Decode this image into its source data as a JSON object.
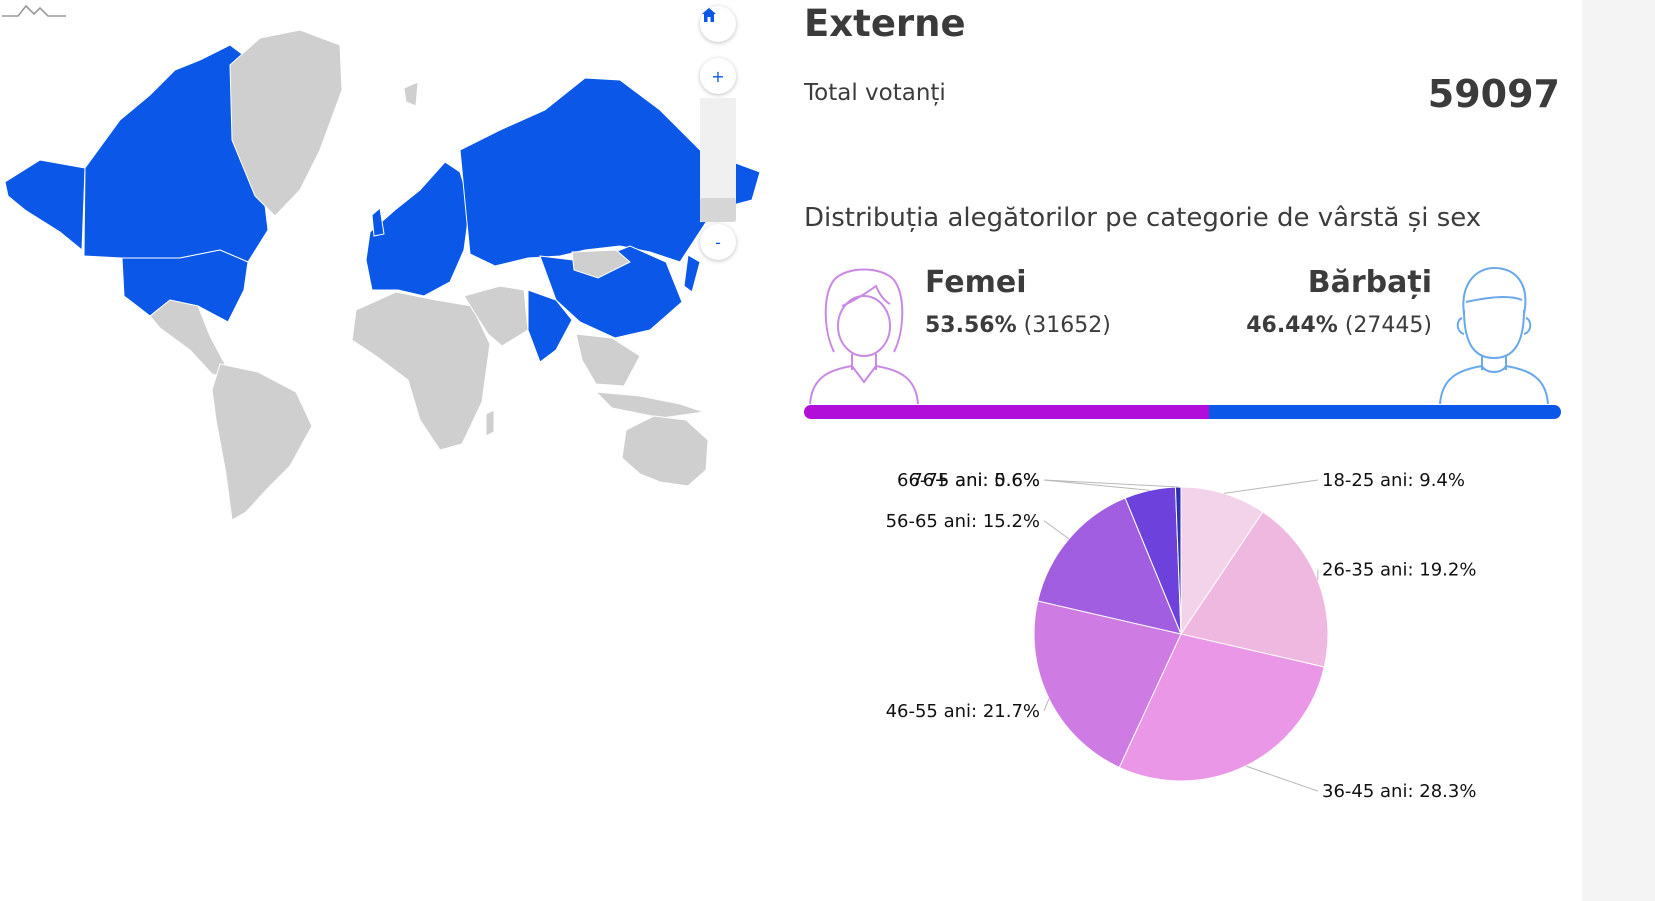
{
  "map": {
    "controls": {
      "home_icon": "home-icon",
      "zoom_in": "+",
      "zoom_out": "-"
    },
    "colors": {
      "highlighted": "#0a57e8",
      "other": "#cfcfcf",
      "border": "#ffffff"
    }
  },
  "header": {
    "title": "Externe"
  },
  "totals": {
    "label": "Total votanți",
    "value": "59097"
  },
  "distribution": {
    "title": "Distribuția alegătorilor pe categorie de vârstă și sex"
  },
  "gender": {
    "female": {
      "label": "Femei",
      "percent": "53.56%",
      "count": "(31652)",
      "fraction": 0.5356,
      "color": "#b10fd9",
      "icon": "woman-icon"
    },
    "male": {
      "label": "Bărbați",
      "percent": "46.44%",
      "count": "(27445)",
      "fraction": 0.4644,
      "color": "#0a57e8",
      "icon": "man-icon"
    }
  },
  "chart_data": {
    "type": "pie",
    "title": "",
    "slices": [
      {
        "label": "18-25 ani: 9.4%",
        "value": 9.4,
        "color": "#f3d3e9"
      },
      {
        "label": "26-35 ani: 19.2%",
        "value": 19.2,
        "color": "#efb8e0"
      },
      {
        "label": "36-45 ani: 28.3%",
        "value": 28.3,
        "color": "#e997e6"
      },
      {
        "label": "46-55 ani: 21.7%",
        "value": 21.7,
        "color": "#cf7be4"
      },
      {
        "label": "56-65 ani: 15.2%",
        "value": 15.2,
        "color": "#a25ee0"
      },
      {
        "label": "66-75 ani: 5.6%",
        "value": 5.6,
        "color": "#6d42dc"
      },
      {
        "label": "76+ ani: 0.6%",
        "value": 0.6,
        "color": "#2a2fb3"
      }
    ]
  }
}
